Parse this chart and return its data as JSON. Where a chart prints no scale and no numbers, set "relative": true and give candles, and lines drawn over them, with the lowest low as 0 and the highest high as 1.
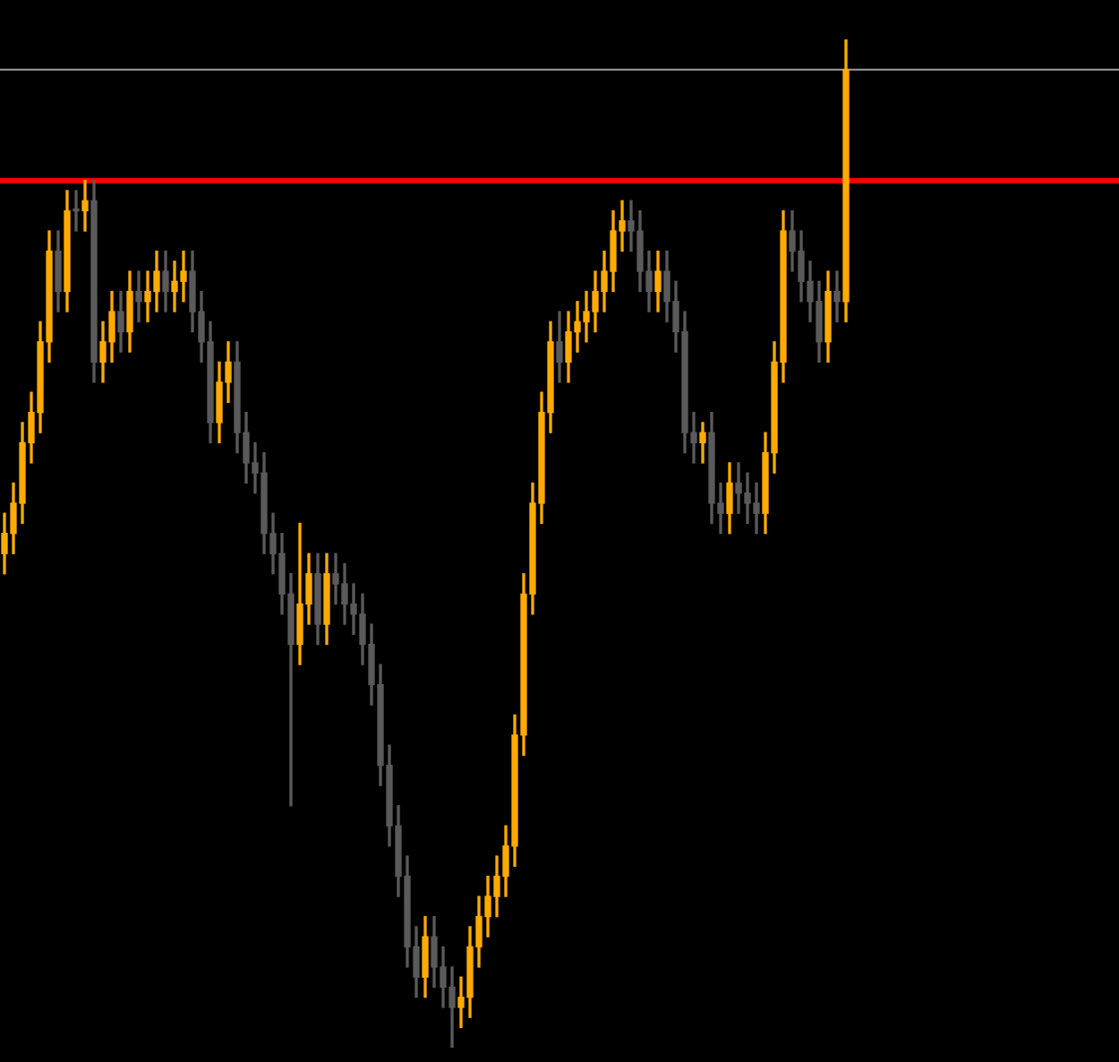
{
  "chart_data": {
    "type": "candlestick",
    "relative": true,
    "categories": [
      null,
      null,
      null,
      null,
      null,
      null,
      null,
      null,
      null,
      null,
      null,
      null,
      null,
      null,
      null,
      null,
      null,
      null,
      null,
      null,
      null,
      null,
      null,
      null,
      null,
      null,
      null,
      null,
      null,
      null,
      null,
      null,
      null,
      null,
      null,
      null,
      null,
      null,
      null,
      null,
      null,
      null,
      null,
      null,
      null,
      null,
      null,
      null,
      null,
      null,
      null,
      null,
      null,
      null,
      null,
      null,
      null,
      null,
      null,
      null,
      null,
      null,
      null,
      null,
      null,
      null,
      null,
      null,
      null,
      null,
      null,
      null,
      null,
      null,
      null,
      null,
      null,
      null,
      null,
      null,
      null,
      null,
      null,
      null,
      null,
      null,
      null,
      null,
      null,
      null,
      null,
      null,
      null,
      null,
      null
    ],
    "ohlc": [
      [
        0.49,
        0.53,
        0.47,
        0.51
      ],
      [
        0.51,
        0.56,
        0.49,
        0.54
      ],
      [
        0.54,
        0.62,
        0.52,
        0.6
      ],
      [
        0.6,
        0.65,
        0.58,
        0.63
      ],
      [
        0.63,
        0.72,
        0.61,
        0.7
      ],
      [
        0.7,
        0.81,
        0.68,
        0.79
      ],
      [
        0.79,
        0.81,
        0.73,
        0.75
      ],
      [
        0.75,
        0.85,
        0.73,
        0.83
      ],
      [
        0.83,
        0.85,
        0.81,
        0.83
      ],
      [
        0.83,
        0.86,
        0.81,
        0.84
      ],
      [
        0.84,
        0.86,
        0.66,
        0.68
      ],
      [
        0.68,
        0.72,
        0.66,
        0.7
      ],
      [
        0.7,
        0.75,
        0.68,
        0.73
      ],
      [
        0.73,
        0.75,
        0.69,
        0.71
      ],
      [
        0.71,
        0.77,
        0.69,
        0.75
      ],
      [
        0.75,
        0.77,
        0.72,
        0.74
      ],
      [
        0.74,
        0.77,
        0.72,
        0.75
      ],
      [
        0.75,
        0.79,
        0.73,
        0.77
      ],
      [
        0.77,
        0.79,
        0.73,
        0.75
      ],
      [
        0.75,
        0.78,
        0.73,
        0.76
      ],
      [
        0.76,
        0.79,
        0.74,
        0.77
      ],
      [
        0.77,
        0.79,
        0.71,
        0.73
      ],
      [
        0.73,
        0.75,
        0.68,
        0.7
      ],
      [
        0.7,
        0.72,
        0.6,
        0.62
      ],
      [
        0.62,
        0.68,
        0.6,
        0.66
      ],
      [
        0.66,
        0.7,
        0.64,
        0.68
      ],
      [
        0.68,
        0.7,
        0.59,
        0.61
      ],
      [
        0.61,
        0.63,
        0.56,
        0.58
      ],
      [
        0.58,
        0.6,
        0.55,
        0.57
      ],
      [
        0.57,
        0.59,
        0.49,
        0.51
      ],
      [
        0.51,
        0.53,
        0.47,
        0.49
      ],
      [
        0.49,
        0.51,
        0.43,
        0.45
      ],
      [
        0.45,
        0.47,
        0.24,
        0.4
      ],
      [
        0.4,
        0.52,
        0.38,
        0.44
      ],
      [
        0.44,
        0.49,
        0.42,
        0.47
      ],
      [
        0.47,
        0.49,
        0.4,
        0.42
      ],
      [
        0.42,
        0.49,
        0.4,
        0.47
      ],
      [
        0.47,
        0.49,
        0.44,
        0.46
      ],
      [
        0.46,
        0.48,
        0.42,
        0.44
      ],
      [
        0.44,
        0.46,
        0.41,
        0.43
      ],
      [
        0.43,
        0.45,
        0.38,
        0.4
      ],
      [
        0.4,
        0.42,
        0.34,
        0.36
      ],
      [
        0.36,
        0.38,
        0.26,
        0.28
      ],
      [
        0.28,
        0.3,
        0.2,
        0.22
      ],
      [
        0.22,
        0.24,
        0.15,
        0.17
      ],
      [
        0.17,
        0.19,
        0.08,
        0.1
      ],
      [
        0.1,
        0.12,
        0.05,
        0.07
      ],
      [
        0.07,
        0.13,
        0.05,
        0.11
      ],
      [
        0.11,
        0.13,
        0.06,
        0.08
      ],
      [
        0.08,
        0.1,
        0.04,
        0.06
      ],
      [
        0.06,
        0.08,
        0.0,
        0.04
      ],
      [
        0.04,
        0.07,
        0.02,
        0.05
      ],
      [
        0.05,
        0.12,
        0.03,
        0.1
      ],
      [
        0.1,
        0.15,
        0.08,
        0.13
      ],
      [
        0.13,
        0.17,
        0.11,
        0.15
      ],
      [
        0.15,
        0.19,
        0.13,
        0.17
      ],
      [
        0.17,
        0.22,
        0.15,
        0.2
      ],
      [
        0.2,
        0.33,
        0.18,
        0.31
      ],
      [
        0.31,
        0.47,
        0.29,
        0.45
      ],
      [
        0.45,
        0.56,
        0.43,
        0.54
      ],
      [
        0.54,
        0.65,
        0.52,
        0.63
      ],
      [
        0.63,
        0.72,
        0.61,
        0.7
      ],
      [
        0.7,
        0.73,
        0.66,
        0.68
      ],
      [
        0.68,
        0.73,
        0.66,
        0.71
      ],
      [
        0.71,
        0.74,
        0.69,
        0.72
      ],
      [
        0.72,
        0.75,
        0.7,
        0.73
      ],
      [
        0.73,
        0.77,
        0.71,
        0.75
      ],
      [
        0.75,
        0.79,
        0.73,
        0.77
      ],
      [
        0.77,
        0.83,
        0.75,
        0.81
      ],
      [
        0.81,
        0.84,
        0.79,
        0.82
      ],
      [
        0.82,
        0.84,
        0.79,
        0.81
      ],
      [
        0.81,
        0.83,
        0.75,
        0.77
      ],
      [
        0.77,
        0.79,
        0.73,
        0.75
      ],
      [
        0.75,
        0.79,
        0.73,
        0.77
      ],
      [
        0.77,
        0.79,
        0.72,
        0.74
      ],
      [
        0.74,
        0.76,
        0.69,
        0.71
      ],
      [
        0.71,
        0.73,
        0.59,
        0.61
      ],
      [
        0.61,
        0.63,
        0.58,
        0.6
      ],
      [
        0.6,
        0.62,
        0.58,
        0.61
      ],
      [
        0.61,
        0.63,
        0.52,
        0.54
      ],
      [
        0.54,
        0.56,
        0.51,
        0.53
      ],
      [
        0.53,
        0.58,
        0.51,
        0.56
      ],
      [
        0.56,
        0.58,
        0.53,
        0.55
      ],
      [
        0.55,
        0.57,
        0.52,
        0.54
      ],
      [
        0.54,
        0.56,
        0.51,
        0.53
      ],
      [
        0.53,
        0.61,
        0.51,
        0.59
      ],
      [
        0.59,
        0.7,
        0.57,
        0.68
      ],
      [
        0.68,
        0.83,
        0.66,
        0.81
      ],
      [
        0.81,
        0.83,
        0.77,
        0.79
      ],
      [
        0.79,
        0.81,
        0.74,
        0.76
      ],
      [
        0.76,
        0.78,
        0.72,
        0.74
      ],
      [
        0.74,
        0.76,
        0.68,
        0.7
      ],
      [
        0.7,
        0.77,
        0.68,
        0.75
      ],
      [
        0.75,
        0.77,
        0.72,
        0.74
      ],
      [
        0.74,
        1.0,
        0.72,
        0.97
      ]
    ],
    "colors": [
      "#ffaa00",
      "#ffaa00",
      "#ffaa00",
      "#ffaa00",
      "#ffaa00",
      "#ffaa00",
      "#5a5a5a",
      "#ffaa00",
      "#5a5a5a",
      "#ffaa00",
      "#5a5a5a",
      "#ffaa00",
      "#ffaa00",
      "#5a5a5a",
      "#ffaa00",
      "#5a5a5a",
      "#ffaa00",
      "#ffaa00",
      "#5a5a5a",
      "#ffaa00",
      "#ffaa00",
      "#5a5a5a",
      "#5a5a5a",
      "#5a5a5a",
      "#ffaa00",
      "#ffaa00",
      "#5a5a5a",
      "#5a5a5a",
      "#5a5a5a",
      "#5a5a5a",
      "#5a5a5a",
      "#5a5a5a",
      "#5a5a5a",
      "#ffaa00",
      "#ffaa00",
      "#5a5a5a",
      "#ffaa00",
      "#5a5a5a",
      "#5a5a5a",
      "#5a5a5a",
      "#5a5a5a",
      "#5a5a5a",
      "#5a5a5a",
      "#5a5a5a",
      "#5a5a5a",
      "#5a5a5a",
      "#5a5a5a",
      "#ffaa00",
      "#5a5a5a",
      "#5a5a5a",
      "#5a5a5a",
      "#ffaa00",
      "#ffaa00",
      "#ffaa00",
      "#ffaa00",
      "#ffaa00",
      "#ffaa00",
      "#ffaa00",
      "#ffaa00",
      "#ffaa00",
      "#ffaa00",
      "#ffaa00",
      "#5a5a5a",
      "#ffaa00",
      "#ffaa00",
      "#ffaa00",
      "#ffaa00",
      "#ffaa00",
      "#ffaa00",
      "#ffaa00",
      "#5a5a5a",
      "#5a5a5a",
      "#5a5a5a",
      "#ffaa00",
      "#5a5a5a",
      "#5a5a5a",
      "#5a5a5a",
      "#5a5a5a",
      "#ffaa00",
      "#5a5a5a",
      "#5a5a5a",
      "#ffaa00",
      "#5a5a5a",
      "#5a5a5a",
      "#5a5a5a",
      "#ffaa00",
      "#ffaa00",
      "#ffaa00",
      "#5a5a5a",
      "#5a5a5a",
      "#5a5a5a",
      "#5a5a5a",
      "#ffaa00",
      "#5a5a5a",
      "#ffaa00"
    ],
    "ref_lines": [
      {
        "axis": "y",
        "value": 0.86,
        "color": "#ff0000"
      },
      {
        "axis": "y",
        "value": 0.97,
        "color": "#a0a0a0"
      }
    ]
  }
}
